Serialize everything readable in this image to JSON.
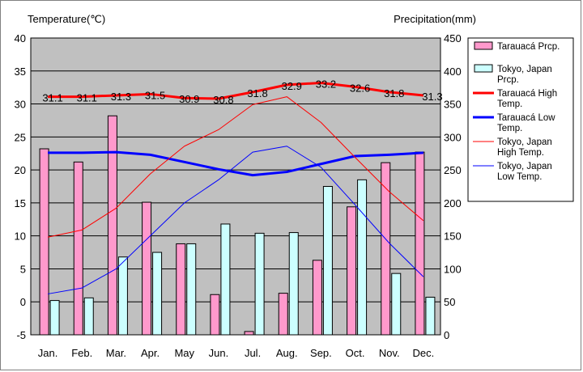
{
  "chart_data": {
    "type": "bar+line",
    "left_axis_title": "Temperature(℃)",
    "right_axis_title": "Precipitation(mm)",
    "y_left": {
      "min": -5,
      "max": 40,
      "ticks": [
        -5,
        0,
        5,
        10,
        15,
        20,
        25,
        30,
        35,
        40
      ]
    },
    "y_right": {
      "min": 0,
      "max": 450,
      "ticks": [
        0,
        50,
        100,
        150,
        200,
        250,
        300,
        350,
        400,
        450
      ]
    },
    "grid": true,
    "legend_position": "right",
    "categories": [
      "Jan.",
      "Feb.",
      "Mar.",
      "Apr.",
      "May",
      "Jun.",
      "Jul.",
      "Aug.",
      "Sep.",
      "Oct.",
      "Nov.",
      "Dec."
    ],
    "bars": [
      {
        "name": "Tarauacá Prcp.",
        "legend_lines": [
          "Tarauacá Prcp."
        ],
        "color": "#ff99cc",
        "axis": "right",
        "values": [
          282,
          262,
          332,
          201,
          138,
          61,
          5,
          63,
          113,
          194,
          261,
          277
        ]
      },
      {
        "name": "Tokyo, Japan Prcp.",
        "legend_lines": [
          "Tokyo, Japan",
          "Prcp."
        ],
        "color": "#ccffff",
        "axis": "right",
        "values": [
          52,
          56,
          118,
          125,
          138,
          168,
          154,
          155,
          225,
          235,
          93,
          57
        ]
      }
    ],
    "lines": [
      {
        "name": "Tarauacá High Temp.",
        "legend_lines": [
          "Tarauacá High",
          "Temp."
        ],
        "color": "#ff0000",
        "width": 3,
        "axis": "left",
        "values": [
          31.1,
          31.1,
          31.3,
          31.5,
          30.9,
          30.8,
          31.8,
          32.9,
          33.2,
          32.6,
          31.8,
          31.3
        ],
        "labels": [
          "31.1",
          "31.1",
          "31.3",
          "31.5",
          "30.9",
          "30.8",
          "31.8",
          "32.9",
          "33.2",
          "32.6",
          "31.8",
          "31.3"
        ]
      },
      {
        "name": "Tarauacá Low Temp.",
        "legend_lines": [
          "Tarauacá Low",
          "Temp."
        ],
        "color": "#0000ff",
        "width": 3,
        "axis": "left",
        "values": [
          22.6,
          22.6,
          22.7,
          22.3,
          21.2,
          20.1,
          19.2,
          19.7,
          20.9,
          22.1,
          22.3,
          22.6
        ]
      },
      {
        "name": "Tokyo, Japan High Temp.",
        "legend_lines": [
          "Tokyo, Japan",
          "High Temp."
        ],
        "color": "#ff0000",
        "width": 1,
        "axis": "left",
        "values": [
          9.8,
          10.9,
          14.2,
          19.4,
          23.6,
          26.1,
          29.9,
          31.1,
          27.2,
          21.9,
          16.7,
          12.3
        ]
      },
      {
        "name": "Tokyo, Japan Low Temp.",
        "legend_lines": [
          "Tokyo, Japan",
          "Low Temp."
        ],
        "color": "#0000ff",
        "width": 1,
        "axis": "left",
        "values": [
          1.2,
          2.1,
          5.0,
          10.0,
          15.0,
          18.5,
          22.7,
          23.6,
          20.4,
          14.7,
          8.9,
          3.8
        ]
      }
    ]
  }
}
